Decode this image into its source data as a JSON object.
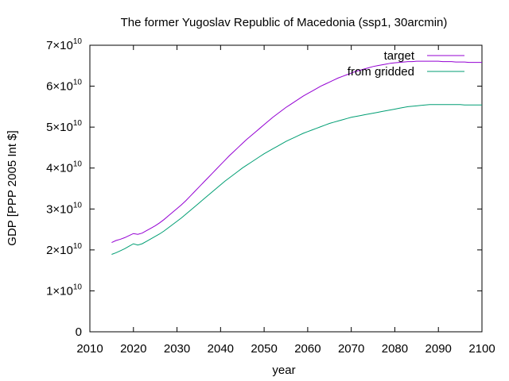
{
  "chart_data": {
    "type": "line",
    "title": "The former Yugoslav Republic of Macedonia (ssp1, 30arcmin)",
    "xlabel": "year",
    "ylabel": "GDP [PPP 2005 Int $]",
    "xlim": [
      2010,
      2100
    ],
    "ylim": [
      0,
      70000000000
    ],
    "xticks": [
      2010,
      2020,
      2030,
      2040,
      2050,
      2060,
      2070,
      2080,
      2090,
      2100
    ],
    "xtick_labels": [
      "2010",
      "2020",
      "2030",
      "2040",
      "2050",
      "2060",
      "2070",
      "2080",
      "2090",
      "2100"
    ],
    "yticks": [
      0,
      10000000000,
      20000000000,
      30000000000,
      40000000000,
      50000000000,
      60000000000,
      70000000000
    ],
    "ytick_labels": [
      {
        "mantissa": "0",
        "exp": ""
      },
      {
        "mantissa": "1×10",
        "exp": "10"
      },
      {
        "mantissa": "2×10",
        "exp": "10"
      },
      {
        "mantissa": "3×10",
        "exp": "10"
      },
      {
        "mantissa": "4×10",
        "exp": "10"
      },
      {
        "mantissa": "5×10",
        "exp": "10"
      },
      {
        "mantissa": "6×10",
        "exp": "10"
      },
      {
        "mantissa": "7×10",
        "exp": "10"
      }
    ],
    "grid": false,
    "legend_position": "top-right",
    "x": [
      2015,
      2016,
      2017,
      2018,
      2019,
      2020,
      2021,
      2022,
      2023,
      2024,
      2025,
      2026,
      2027,
      2028,
      2029,
      2030,
      2031,
      2032,
      2033,
      2034,
      2035,
      2036,
      2037,
      2038,
      2039,
      2040,
      2041,
      2042,
      2043,
      2044,
      2045,
      2046,
      2047,
      2048,
      2049,
      2050,
      2051,
      2052,
      2053,
      2054,
      2055,
      2056,
      2057,
      2058,
      2059,
      2060,
      2061,
      2062,
      2063,
      2064,
      2065,
      2066,
      2067,
      2068,
      2069,
      2070,
      2071,
      2072,
      2073,
      2074,
      2075,
      2076,
      2077,
      2078,
      2079,
      2080,
      2081,
      2082,
      2083,
      2084,
      2085,
      2086,
      2087,
      2088,
      2089,
      2090,
      2091,
      2092,
      2093,
      2094,
      2095,
      2096,
      2097,
      2098,
      2099,
      2100
    ],
    "series": [
      {
        "name": "target",
        "color": "#9400d3",
        "values": [
          21800000000,
          22300000000,
          22600000000,
          23000000000,
          23500000000,
          24000000000,
          23800000000,
          24100000000,
          24700000000,
          25300000000,
          25900000000,
          26600000000,
          27400000000,
          28300000000,
          29200000000,
          30100000000,
          31000000000,
          32000000000,
          33100000000,
          34200000000,
          35300000000,
          36400000000,
          37500000000,
          38600000000,
          39700000000,
          40800000000,
          41900000000,
          43000000000,
          44000000000,
          45000000000,
          46000000000,
          47000000000,
          47900000000,
          48800000000,
          49700000000,
          50600000000,
          51500000000,
          52400000000,
          53200000000,
          54000000000,
          54800000000,
          55500000000,
          56200000000,
          56900000000,
          57600000000,
          58200000000,
          58800000000,
          59400000000,
          60000000000,
          60500000000,
          61000000000,
          61500000000,
          62000000000,
          62400000000,
          62800000000,
          63200000000,
          63600000000,
          63900000000,
          64200000000,
          64500000000,
          64800000000,
          65000000000,
          65200000000,
          65400000000,
          65600000000,
          65700000000,
          65800000000,
          65900000000,
          66000000000,
          66000000000,
          66100000000,
          66100000000,
          66100000000,
          66100000000,
          66100000000,
          66100000000,
          66000000000,
          66000000000,
          66000000000,
          65900000000,
          65900000000,
          65900000000,
          65800000000,
          65800000000,
          65800000000,
          65800000000
        ]
      },
      {
        "name": "from gridded",
        "color": "#009e73",
        "values": [
          18900000000,
          19300000000,
          19800000000,
          20300000000,
          20900000000,
          21500000000,
          21200000000,
          21500000000,
          22100000000,
          22700000000,
          23300000000,
          23900000000,
          24600000000,
          25400000000,
          26200000000,
          27000000000,
          27800000000,
          28700000000,
          29600000000,
          30500000000,
          31400000000,
          32300000000,
          33200000000,
          34100000000,
          35000000000,
          35900000000,
          36800000000,
          37600000000,
          38400000000,
          39200000000,
          40000000000,
          40700000000,
          41400000000,
          42100000000,
          42800000000,
          43500000000,
          44100000000,
          44700000000,
          45300000000,
          45900000000,
          46500000000,
          47000000000,
          47500000000,
          48000000000,
          48500000000,
          48900000000,
          49300000000,
          49700000000,
          50100000000,
          50500000000,
          50900000000,
          51200000000,
          51500000000,
          51800000000,
          52100000000,
          52400000000,
          52600000000,
          52800000000,
          53000000000,
          53200000000,
          53400000000,
          53600000000,
          53800000000,
          54000000000,
          54200000000,
          54400000000,
          54600000000,
          54800000000,
          55000000000,
          55100000000,
          55200000000,
          55300000000,
          55400000000,
          55500000000,
          55500000000,
          55500000000,
          55500000000,
          55500000000,
          55500000000,
          55500000000,
          55500000000,
          55400000000,
          55400000000,
          55400000000,
          55400000000,
          55400000000
        ]
      }
    ]
  }
}
